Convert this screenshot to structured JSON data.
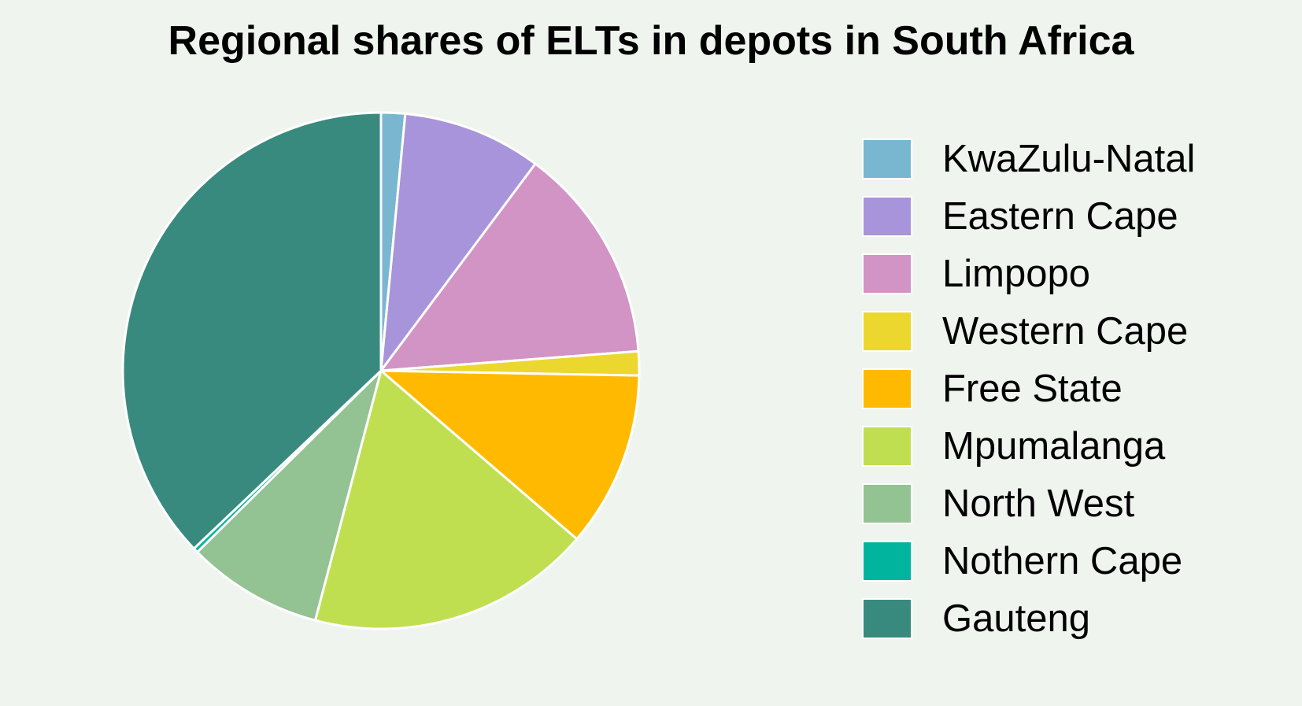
{
  "chart_data": {
    "type": "pie",
    "title": "Regional shares of ELTs in depots in South Africa",
    "legend_position": "right",
    "start_angle": "top, clockwise",
    "slices": [
      {
        "label": "KwaZulu-Natal",
        "value": 1.5,
        "color": "#79b6d0"
      },
      {
        "label": "Eastern Cape",
        "value": 8.7,
        "color": "#a894da"
      },
      {
        "label": "Limpopo",
        "value": 13.6,
        "color": "#d293c5"
      },
      {
        "label": "Western Cape",
        "value": 1.5,
        "color": "#ecd72e"
      },
      {
        "label": "Free State",
        "value": 11.0,
        "color": "#ffba00"
      },
      {
        "label": "Mpumalanga",
        "value": 17.8,
        "color": "#c0df50"
      },
      {
        "label": "North West",
        "value": 8.5,
        "color": "#93c293"
      },
      {
        "label": "Nothern Cape",
        "value": 0.3,
        "color": "#00b49e"
      },
      {
        "label": "Gauteng",
        "value": 37.1,
        "color": "#398a7e"
      }
    ]
  }
}
